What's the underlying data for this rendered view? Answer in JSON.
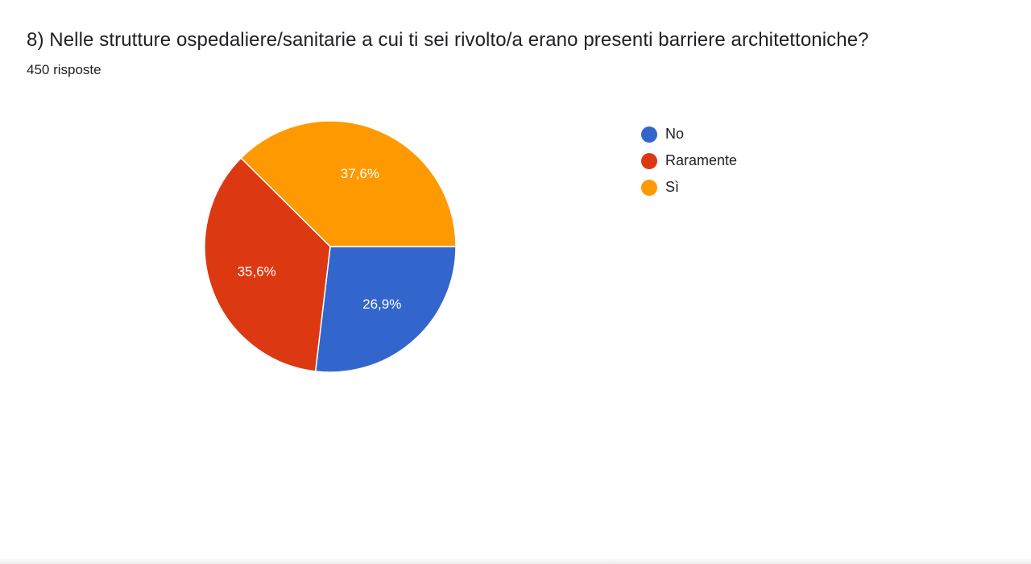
{
  "question": {
    "title": "8) Nelle strutture ospedaliere/sanitarie a cui ti sei rivolto/a erano presenti barriere architettoniche?",
    "responses": "450 risposte"
  },
  "chart_data": {
    "type": "pie",
    "title": "8) Nelle strutture ospedaliere/sanitarie a cui ti sei rivolto/a erano presenti barriere architettoniche?",
    "subtitle": "450 risposte",
    "legend_position": "right",
    "slices": [
      {
        "label": "No",
        "value": 26.9,
        "display": "26,9%",
        "color": "#3366cc"
      },
      {
        "label": "Raramente",
        "value": 35.6,
        "display": "35,6%",
        "color": "#dc3912"
      },
      {
        "label": "Sì",
        "value": 37.6,
        "display": "37,6%",
        "color": "#ff9900"
      }
    ]
  }
}
